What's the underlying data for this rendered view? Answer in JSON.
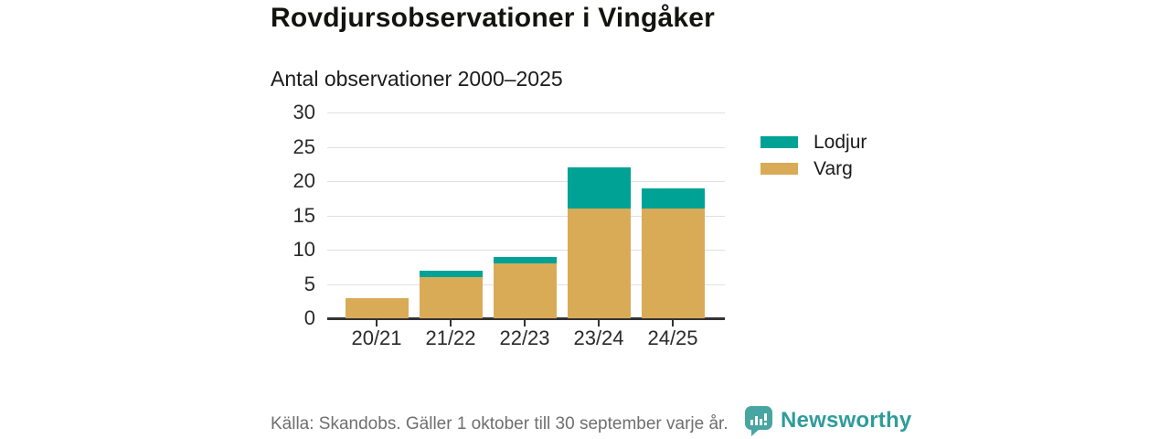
{
  "header": {
    "title": "Rovdjursobservationer i Vingåker",
    "subtitle": "Antal observationer 2000–2025"
  },
  "chart_data": {
    "type": "bar",
    "stacked": true,
    "title": "Rovdjursobservationer i Vingåker",
    "subtitle": "Antal observationer 2000–2025",
    "categories": [
      "20/21",
      "21/22",
      "22/23",
      "23/24",
      "24/25"
    ],
    "series": [
      {
        "name": "Lodjur",
        "color": "#00a296",
        "values": [
          0,
          1,
          1,
          6,
          3
        ]
      },
      {
        "name": "Varg",
        "color": "#d9ab57",
        "values": [
          3,
          6,
          8,
          16,
          16
        ]
      }
    ],
    "stack_order_bottom_to_top": [
      "Varg",
      "Lodjur"
    ],
    "totals": [
      3,
      7,
      9,
      22,
      19
    ],
    "ylim": [
      0,
      30
    ],
    "yticks": [
      0,
      5,
      10,
      15,
      20,
      25,
      30
    ],
    "xlabel": "",
    "ylabel": "",
    "grid": "horizontal",
    "legend_position": "right",
    "axis_color": "#333333",
    "gridline_color": "#e0e0e0"
  },
  "footer": {
    "source": "Källa: Skandobs. Gäller 1 oktober till 30 september varje år.",
    "brand": "Newsworthy",
    "brand_color": "#2f9c9b",
    "brand_icon": "bar-chart-speech-bubble"
  }
}
